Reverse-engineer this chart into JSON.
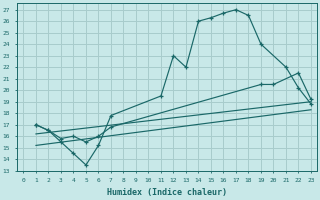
{
  "bg_color": "#c8e8e8",
  "grid_color": "#a8cccc",
  "line_color": "#1a6868",
  "xlabel": "Humidex (Indice chaleur)",
  "xlim": [
    -0.5,
    23.5
  ],
  "ylim": [
    13,
    27.6
  ],
  "xticks": [
    0,
    1,
    2,
    3,
    4,
    5,
    6,
    7,
    8,
    9,
    10,
    11,
    12,
    13,
    14,
    15,
    16,
    17,
    18,
    19,
    20,
    21,
    22,
    23
  ],
  "yticks": [
    13,
    14,
    15,
    16,
    17,
    18,
    19,
    20,
    21,
    22,
    23,
    24,
    25,
    26,
    27
  ],
  "curve1_x": [
    1,
    2,
    3,
    4,
    5,
    6,
    7,
    11,
    12,
    13,
    14,
    15,
    16,
    17,
    18,
    19,
    21,
    22,
    23
  ],
  "curve1_y": [
    17.0,
    16.5,
    15.5,
    14.5,
    13.5,
    15.2,
    17.8,
    19.5,
    23.0,
    22.0,
    26.0,
    26.3,
    26.7,
    27.0,
    26.5,
    24.0,
    22.0,
    20.2,
    18.8
  ],
  "curve2_x": [
    1,
    2,
    3,
    4,
    5,
    6,
    7,
    19,
    20,
    22,
    23
  ],
  "curve2_y": [
    17.0,
    16.5,
    15.8,
    16.0,
    15.5,
    16.0,
    16.8,
    20.5,
    20.5,
    21.5,
    19.2
  ],
  "line3_x": [
    1,
    23
  ],
  "line3_y": [
    16.2,
    19.0
  ],
  "line4_x": [
    1,
    23
  ],
  "line4_y": [
    15.2,
    18.3
  ]
}
